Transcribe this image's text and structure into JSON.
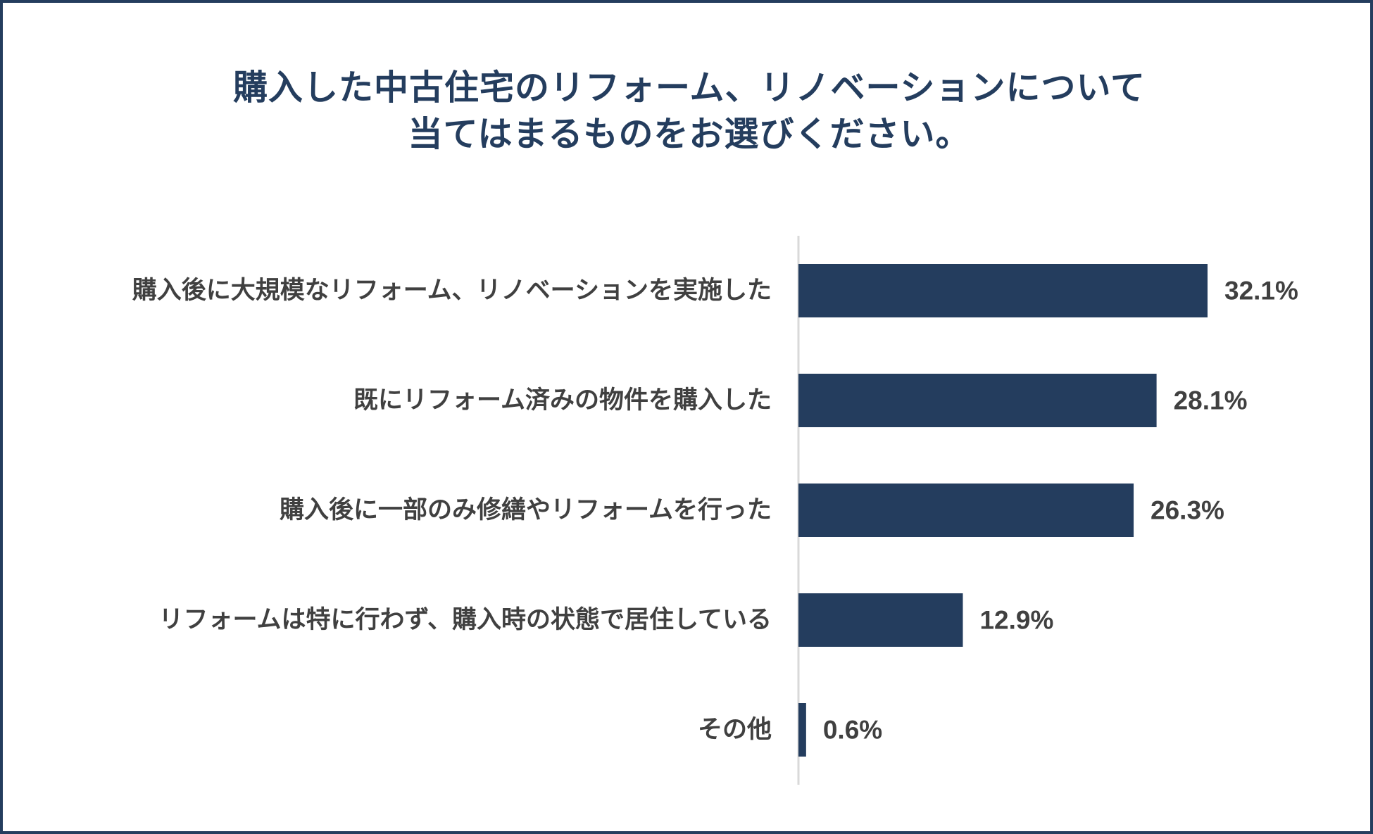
{
  "chart_data": {
    "type": "bar",
    "orientation": "horizontal",
    "title_lines": [
      "購入した中古住宅のリフォーム、リノベーションについて",
      "当てはまるものをお選びください。"
    ],
    "categories": [
      "購入後に大規模なリフォーム、リノベーションを実施した",
      "既にリフォーム済みの物件を購入した",
      "購入後に一部のみ修繕やリフォームを行った",
      "リフォームは特に行わず、購入時の状態で居住している",
      "その他"
    ],
    "values": [
      32.1,
      28.1,
      26.3,
      12.9,
      0.6
    ],
    "value_labels": [
      "32.1%",
      "28.1%",
      "26.3%",
      "12.9%",
      "0.6%"
    ],
    "xlim": [
      0,
      40
    ],
    "xlabel": "",
    "ylabel": "",
    "grid": false,
    "legend": "none",
    "colors": {
      "bar": "#243d5e",
      "frame": "#243d5e",
      "title": "#243d5e",
      "text": "#404040",
      "axis": "#d9d9d9"
    }
  }
}
